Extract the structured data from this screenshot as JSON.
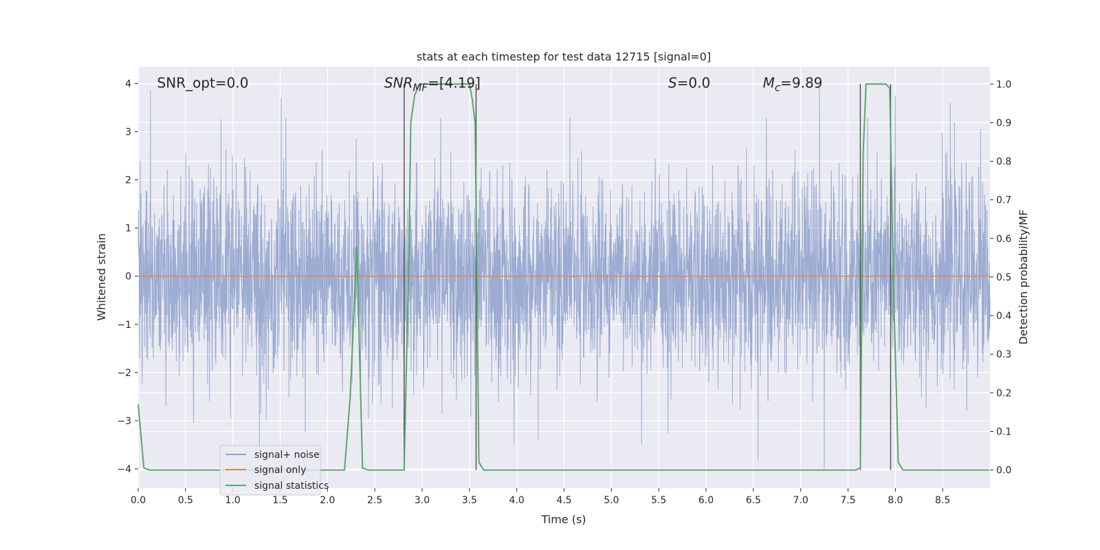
{
  "chart_data": {
    "type": "line",
    "title": "stats at each timestep for test data 12715 [signal=0]",
    "xlabel": "Time (s)",
    "ylabel": "Whitened strain",
    "y2label": "Detection probability/MF",
    "xlim": [
      0,
      9
    ],
    "ylim": [
      -4.4,
      4.35
    ],
    "y2lim": [
      -0.047,
      1.045
    ],
    "xticks": [
      0.0,
      0.5,
      1.0,
      1.5,
      2.0,
      2.5,
      3.0,
      3.5,
      4.0,
      4.5,
      5.0,
      5.5,
      6.0,
      6.5,
      7.0,
      7.5,
      8.0,
      8.5
    ],
    "xtick_labels": [
      "0.0",
      "0.5",
      "1.0",
      "1.5",
      "2.0",
      "2.5",
      "3.0",
      "3.5",
      "4.0",
      "4.5",
      "5.0",
      "5.5",
      "6.0",
      "6.5",
      "7.0",
      "7.5",
      "8.0",
      "8.5"
    ],
    "yticks": [
      4,
      3,
      2,
      1,
      0,
      -1,
      -2,
      -3,
      -4
    ],
    "ytick_labels": [
      "4",
      "3",
      "2",
      "1",
      "0",
      "−1",
      "−2",
      "−3",
      "−4"
    ],
    "y2ticks": [
      1.0,
      0.9,
      0.8,
      0.7,
      0.6,
      0.5,
      0.4,
      0.3,
      0.2,
      0.1,
      0.0
    ],
    "y2tick_labels": [
      "1.0",
      "0.9",
      "0.8",
      "0.7",
      "0.6",
      "0.5",
      "0.4",
      "0.3",
      "0.2",
      "0.1",
      "0.0"
    ],
    "grid": true,
    "legend_position": "bottom-left",
    "legend": [
      {
        "label": "signal+ noise",
        "color": "#8da0cb"
      },
      {
        "label": "signal only",
        "color": "#dd8452"
      },
      {
        "label": "signal statistics",
        "color": "#55a868"
      }
    ],
    "annotations": [
      {
        "label": "SNR_opt=0.0",
        "x": 0.2,
        "y": 4.0
      },
      {
        "label": "SNR_MF=[4.19]",
        "x": 2.6,
        "y": 4.0
      },
      {
        "label": "S=0.0",
        "x": 5.6,
        "y": 4.0
      },
      {
        "label": "M_c=9.89",
        "x": 6.6,
        "y": 4.0
      }
    ],
    "noise": {
      "name": "signal+ noise",
      "description_sigma": 1.0,
      "peaks": [
        {
          "x": 0.13,
          "y": 3.85
        },
        {
          "x": 1.51,
          "y": 3.7
        },
        {
          "x": 7.2,
          "y": 3.95
        },
        {
          "x": 8.0,
          "y": 3.75
        },
        {
          "x": 8.58,
          "y": 3.6
        },
        {
          "x": 8.9,
          "y": 3.05
        },
        {
          "x": 1.28,
          "y": -3.7
        },
        {
          "x": 6.55,
          "y": -3.8
        },
        {
          "x": 7.25,
          "y": -4.0
        }
      ]
    },
    "signal_only": {
      "name": "signal only",
      "y": 0.0
    },
    "signal_statistics": {
      "name": "signal statistics",
      "x": [
        0.0,
        0.06,
        0.12,
        0.5,
        1.0,
        1.5,
        2.0,
        2.18,
        2.24,
        2.31,
        2.37,
        2.43,
        2.6,
        2.81,
        2.86,
        2.88,
        2.92,
        2.97,
        3.5,
        3.53,
        3.56,
        3.6,
        3.65,
        4.0,
        5.0,
        6.0,
        7.0,
        7.58,
        7.63,
        7.66,
        7.69,
        7.74,
        7.9,
        7.94,
        7.98,
        8.03,
        8.08,
        8.5,
        8.99
      ],
      "y": [
        0.17,
        0.005,
        0.0,
        0.0,
        0.0,
        0.0,
        0.0,
        0.0,
        0.19,
        0.58,
        0.005,
        0.0,
        0.0,
        0.0,
        0.55,
        0.9,
        0.97,
        1.0,
        1.0,
        0.96,
        0.9,
        0.02,
        0.0,
        0.0,
        0.0,
        0.0,
        0.0,
        0.0,
        0.005,
        0.82,
        1.0,
        1.0,
        1.0,
        0.99,
        0.48,
        0.02,
        0.0,
        0.0,
        0.0
      ]
    },
    "vlines": [
      2.81,
      3.57,
      7.63,
      7.95
    ]
  }
}
